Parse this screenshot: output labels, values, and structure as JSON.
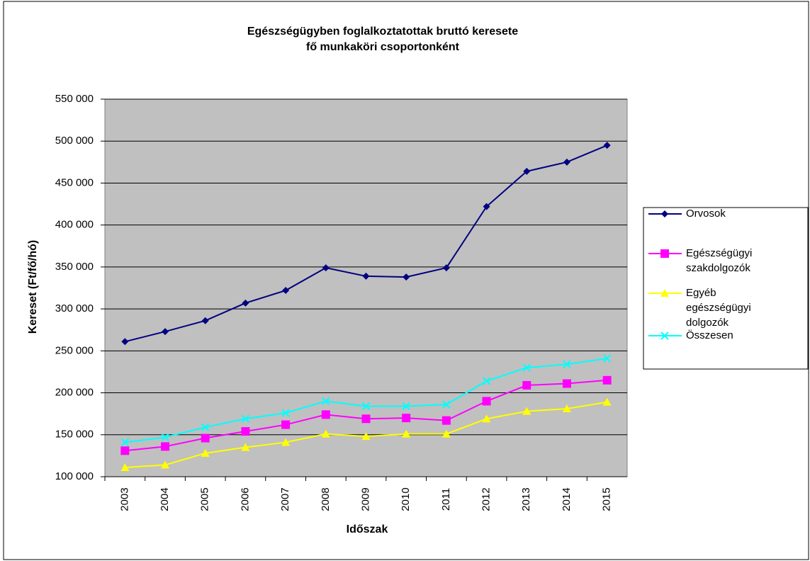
{
  "chart_data": {
    "type": "line",
    "title": [
      "Egészségügyben foglalkoztatottak bruttó keresete",
      "fő munkaköri csoportonként"
    ],
    "x_label": "Időszak",
    "y_label": "Kereset (Ft/fő/hó)",
    "categories": [
      "2003",
      "2004",
      "2005",
      "2006",
      "2007",
      "2008",
      "2009",
      "2010",
      "2011",
      "2012",
      "2013",
      "2014",
      "2015"
    ],
    "series": [
      {
        "name": "Orvosok",
        "color": "#000080",
        "marker": "diamond",
        "values": [
          261000,
          273000,
          286000,
          307000,
          322000,
          349000,
          339000,
          338000,
          349000,
          422000,
          464000,
          475000,
          495000
        ]
      },
      {
        "name": "Egészségügyi szakdolgozók",
        "color": "#ff00ff",
        "marker": "square",
        "values": [
          131000,
          136000,
          146000,
          154000,
          162000,
          174000,
          169000,
          170000,
          167000,
          190000,
          209000,
          211000,
          215000
        ]
      },
      {
        "name": "Egyéb egészségügyi dolgozók",
        "color": "#ffff00",
        "marker": "triangle",
        "values": [
          111000,
          114000,
          128000,
          135000,
          141000,
          151000,
          148000,
          151000,
          151000,
          169000,
          178000,
          181000,
          189000
        ]
      },
      {
        "name": "Összesen",
        "color": "#00ffff",
        "marker": "x",
        "values": [
          141000,
          147000,
          159000,
          169000,
          176000,
          190000,
          184000,
          184000,
          186000,
          214000,
          230000,
          234000,
          241000
        ]
      }
    ],
    "ylim": [
      100000,
      550000
    ],
    "yticks": [
      {
        "value": 100000,
        "label": "100 000"
      },
      {
        "value": 150000,
        "label": "150 000"
      },
      {
        "value": 200000,
        "label": "200 000"
      },
      {
        "value": 250000,
        "label": "250 000"
      },
      {
        "value": 300000,
        "label": "300 000"
      },
      {
        "value": 350000,
        "label": "350 000"
      },
      {
        "value": 400000,
        "label": "400 000"
      },
      {
        "value": 450000,
        "label": "450 000"
      },
      {
        "value": 500000,
        "label": "500 000"
      },
      {
        "value": 550000,
        "label": "550 000"
      }
    ],
    "grid": true,
    "legend": "right"
  }
}
